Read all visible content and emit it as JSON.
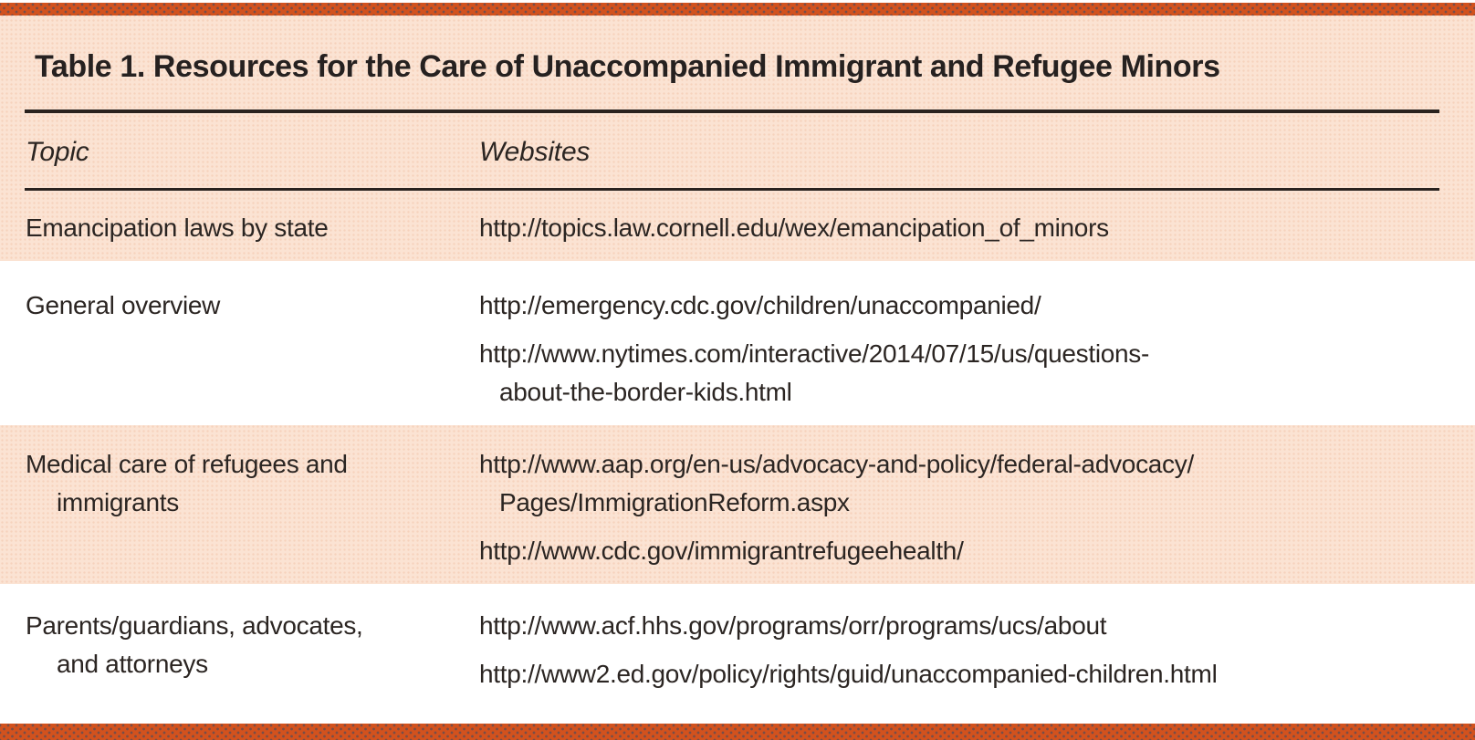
{
  "title": "Table 1. Resources for the Care of Unaccompanied Immigrant and Refugee Minors",
  "columns": {
    "topic": "Topic",
    "websites": "Websites"
  },
  "rows": [
    {
      "topic_lines": [
        "Emancipation laws by state"
      ],
      "websites": [
        {
          "lines": [
            "http://topics.law.cornell.edu/wex/emancipation_of_minors"
          ]
        }
      ]
    },
    {
      "topic_lines": [
        "General overview"
      ],
      "websites": [
        {
          "lines": [
            "http://emergency.cdc.gov/children/unaccompanied/"
          ]
        },
        {
          "lines": [
            "http://www.nytimes.com/interactive/2014/07/15/us/questions-",
            "about-the-border-kids.html"
          ]
        }
      ]
    },
    {
      "topic_lines": [
        "Medical care of refugees and",
        "immigrants"
      ],
      "websites": [
        {
          "lines": [
            "http://www.aap.org/en-us/advocacy-and-policy/federal-advocacy/",
            "Pages/ImmigrationReform.aspx"
          ]
        },
        {
          "lines": [
            "http://www.cdc.gov/immigrantrefugeehealth/"
          ]
        }
      ]
    },
    {
      "topic_lines": [
        "Parents/guardians, advocates,",
        "and attorneys"
      ],
      "websites": [
        {
          "lines": [
            "http://www.acf.hhs.gov/programs/orr/programs/ucs/about"
          ]
        },
        {
          "lines": [
            "http://www2.ed.gov/policy/rights/guid/unaccompanied-children.html"
          ]
        }
      ]
    }
  ],
  "colors": {
    "accent_orange": "#d2521e",
    "background_peach": "#fbe3d3",
    "row_stripe_white": "#ffffff",
    "text": "#2b2522",
    "rule": "#2a231f"
  }
}
